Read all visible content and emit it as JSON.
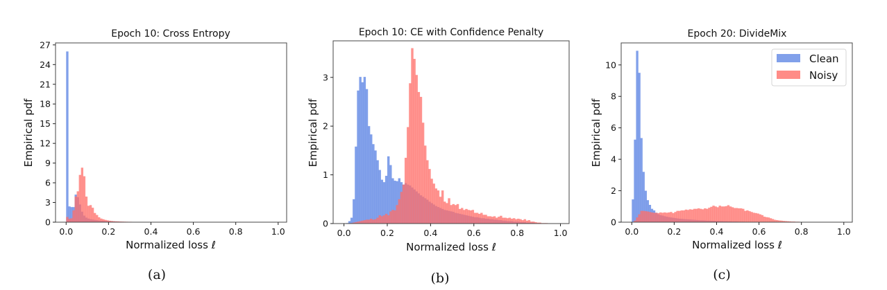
{
  "figure": {
    "legend": {
      "entries": [
        {
          "label": "Clean",
          "color": "#6b8fe6"
        },
        {
          "label": "Noisy",
          "color": "#ff6f69"
        }
      ],
      "placement": "top-right of panel (c)"
    }
  },
  "chart_data": [
    {
      "type": "bar",
      "subtype": "overlapping-histogram",
      "caption": "(a)",
      "title": "Epoch 10: Cross Entropy",
      "xlabel": "Normalized loss ℓ",
      "ylabel": "Empirical pdf",
      "xlim": [
        -0.05,
        1.04
      ],
      "ylim": [
        0,
        27.3
      ],
      "xticks": [
        "0.0",
        "0.2",
        "0.4",
        "0.6",
        "0.8",
        "1.0"
      ],
      "xtick_values": [
        0.0,
        0.2,
        0.4,
        0.6,
        0.8,
        1.0
      ],
      "yticks": [
        "0",
        "3",
        "6",
        "9",
        "12",
        "15",
        "18",
        "21",
        "24",
        "27"
      ],
      "ytick_values": [
        0,
        3,
        6,
        9,
        12,
        15,
        18,
        21,
        24,
        27
      ],
      "bin_width": 0.01,
      "bin_start": 0.0,
      "series": [
        {
          "name": "Clean",
          "color": "#6b8fe6",
          "values": [
            26.0,
            2.4,
            2.3,
            2.3,
            4.2,
            3.8,
            2.7,
            1.6,
            1.0,
            0.7,
            0.55,
            0.45,
            0.4,
            0.35,
            0.3,
            0.25,
            0.22,
            0.2,
            0.17,
            0.15,
            0.13,
            0.12,
            0.1,
            0.09,
            0.08,
            0.07,
            0.06,
            0.05,
            0.05,
            0.04,
            0.04,
            0.03,
            0.03,
            0.03,
            0.02,
            0.02,
            0.02,
            0.02,
            0.02,
            0.02
          ]
        },
        {
          "name": "Noisy",
          "color": "#ff6f69",
          "values": [
            0.8,
            0.5,
            0.6,
            1.8,
            3.9,
            4.7,
            7.2,
            8.3,
            7.0,
            3.9,
            2.5,
            2.6,
            2.2,
            1.4,
            1.1,
            0.75,
            0.55,
            0.45,
            0.35,
            0.28,
            0.22,
            0.18,
            0.15,
            0.13,
            0.12,
            0.1,
            0.09,
            0.08,
            0.07,
            0.06,
            0.06,
            0.05,
            0.05,
            0.04,
            0.04,
            0.04,
            0.03,
            0.03,
            0.03,
            0.03,
            0.03,
            0.02,
            0.02,
            0.02,
            0.02,
            0.02
          ]
        }
      ]
    },
    {
      "type": "bar",
      "subtype": "overlapping-histogram",
      "caption": "(b)",
      "title": "Epoch 10: CE with Confidence Penalty",
      "xlabel": "Normalized loss ℓ",
      "ylabel": "Empirical pdf",
      "xlim": [
        -0.05,
        1.04
      ],
      "ylim": [
        0,
        3.75
      ],
      "xticks": [
        "0.0",
        "0.2",
        "0.4",
        "0.6",
        "0.8",
        "1.0"
      ],
      "xtick_values": [
        0.0,
        0.2,
        0.4,
        0.6,
        0.8,
        1.0
      ],
      "yticks": [
        "0",
        "1",
        "2",
        "3"
      ],
      "ytick_values": [
        0,
        1,
        2,
        3
      ],
      "bin_width": 0.01,
      "bin_start": 0.0,
      "series": [
        {
          "name": "Clean",
          "color": "#6b8fe6",
          "values": [
            0.0,
            0.01,
            0.05,
            0.12,
            0.5,
            1.58,
            2.73,
            3.01,
            2.9,
            3.01,
            2.76,
            2.0,
            1.83,
            1.63,
            1.5,
            1.3,
            1.1,
            0.9,
            0.85,
            0.98,
            1.38,
            1.2,
            0.93,
            0.88,
            0.87,
            0.93,
            0.85,
            0.8,
            0.83,
            0.8,
            0.78,
            0.74,
            0.7,
            0.66,
            0.62,
            0.58,
            0.55,
            0.52,
            0.49,
            0.45,
            0.42,
            0.39,
            0.36,
            0.34,
            0.32,
            0.3,
            0.28,
            0.27,
            0.26,
            0.25,
            0.24,
            0.22,
            0.21,
            0.2,
            0.19,
            0.18,
            0.17,
            0.16,
            0.15,
            0.14,
            0.13,
            0.13,
            0.12,
            0.11,
            0.11,
            0.1,
            0.1,
            0.09,
            0.09,
            0.08,
            0.08,
            0.07,
            0.07,
            0.06,
            0.06,
            0.05,
            0.05,
            0.05,
            0.04,
            0.04,
            0.04,
            0.03,
            0.03,
            0.03,
            0.02,
            0.02,
            0.02,
            0.02,
            0.01,
            0.01,
            0.01
          ]
        },
        {
          "name": "Noisy",
          "color": "#ff6f69",
          "values": [
            0.0,
            0.0,
            0.0,
            0.01,
            0.02,
            0.03,
            0.04,
            0.05,
            0.06,
            0.07,
            0.08,
            0.08,
            0.1,
            0.08,
            0.09,
            0.12,
            0.17,
            0.15,
            0.17,
            0.2,
            0.17,
            0.25,
            0.28,
            0.27,
            0.38,
            0.5,
            0.65,
            0.8,
            1.35,
            1.98,
            2.88,
            3.6,
            3.38,
            3.05,
            2.7,
            2.6,
            2.07,
            1.6,
            1.3,
            1.12,
            0.92,
            0.82,
            0.72,
            0.68,
            0.55,
            0.68,
            0.45,
            0.42,
            0.52,
            0.38,
            0.4,
            0.38,
            0.4,
            0.3,
            0.32,
            0.28,
            0.3,
            0.28,
            0.27,
            0.28,
            0.22,
            0.22,
            0.2,
            0.22,
            0.18,
            0.18,
            0.15,
            0.15,
            0.14,
            0.15,
            0.12,
            0.14,
            0.16,
            0.12,
            0.12,
            0.11,
            0.12,
            0.1,
            0.11,
            0.09,
            0.1,
            0.09,
            0.07,
            0.09,
            0.06,
            0.07,
            0.04,
            0.04,
            0.03,
            0.02,
            0.02,
            0.01,
            0.01,
            0.01,
            0.0
          ]
        }
      ]
    },
    {
      "type": "bar",
      "subtype": "overlapping-histogram",
      "caption": "(c)",
      "title": "Epoch 20: DivideMix",
      "xlabel": "Normalized loss ℓ",
      "ylabel": "Empirical pdf",
      "xlim": [
        -0.05,
        1.04
      ],
      "ylim": [
        0,
        11.4
      ],
      "xticks": [
        "0.0",
        "0.2",
        "0.4",
        "0.6",
        "0.8",
        "1.0"
      ],
      "xtick_values": [
        0.0,
        0.2,
        0.4,
        0.6,
        0.8,
        1.0
      ],
      "yticks": [
        "0",
        "2",
        "4",
        "6",
        "8",
        "10"
      ],
      "ytick_values": [
        0,
        2,
        4,
        6,
        8,
        10
      ],
      "legend": [
        "Clean",
        "Noisy"
      ],
      "legend_placement": "top-right",
      "bin_width": 0.01,
      "bin_start": 0.0,
      "series": [
        {
          "name": "Clean",
          "color": "#6b8fe6",
          "values": [
            1.45,
            5.25,
            10.9,
            9.5,
            5.35,
            3.2,
            2.0,
            1.4,
            1.1,
            0.85,
            0.75,
            0.6,
            0.5,
            0.45,
            0.42,
            0.38,
            0.35,
            0.32,
            0.3,
            0.28,
            0.26,
            0.24,
            0.22,
            0.21,
            0.2,
            0.19,
            0.18,
            0.17,
            0.16,
            0.15,
            0.14,
            0.13,
            0.12,
            0.12,
            0.11,
            0.1,
            0.1,
            0.09,
            0.09,
            0.08,
            0.08,
            0.07,
            0.07,
            0.06,
            0.06,
            0.05,
            0.05,
            0.04,
            0.04,
            0.04,
            0.03,
            0.03,
            0.03,
            0.02,
            0.02,
            0.02,
            0.02,
            0.01,
            0.01,
            0.01
          ]
        },
        {
          "name": "Noisy",
          "color": "#ff6f69",
          "values": [
            0.02,
            0.1,
            0.3,
            0.5,
            0.72,
            0.72,
            0.7,
            0.68,
            0.65,
            0.62,
            0.6,
            0.6,
            0.58,
            0.62,
            0.6,
            0.62,
            0.6,
            0.62,
            0.65,
            0.58,
            0.65,
            0.72,
            0.72,
            0.75,
            0.75,
            0.8,
            0.78,
            0.82,
            0.8,
            0.85,
            0.85,
            0.88,
            0.85,
            0.82,
            0.88,
            0.85,
            0.92,
            0.98,
            1.05,
            1.0,
            0.95,
            1.05,
            1.0,
            1.0,
            1.02,
            1.08,
            1.0,
            0.95,
            0.9,
            0.9,
            0.88,
            0.88,
            0.85,
            0.72,
            0.75,
            0.7,
            0.65,
            0.6,
            0.58,
            0.55,
            0.5,
            0.45,
            0.35,
            0.32,
            0.3,
            0.25,
            0.2,
            0.15,
            0.13,
            0.11,
            0.1,
            0.08,
            0.07,
            0.06,
            0.05,
            0.04,
            0.04,
            0.03,
            0.03,
            0.02,
            0.02,
            0.01,
            0.01
          ]
        }
      ]
    }
  ]
}
